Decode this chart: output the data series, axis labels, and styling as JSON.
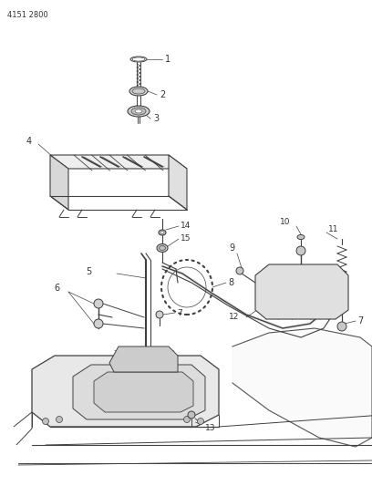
{
  "ref_number": "4151 2800",
  "background_color": "#ffffff",
  "line_color": "#404040",
  "text_color": "#333333",
  "figsize": [
    4.08,
    5.33
  ],
  "dpi": 100
}
